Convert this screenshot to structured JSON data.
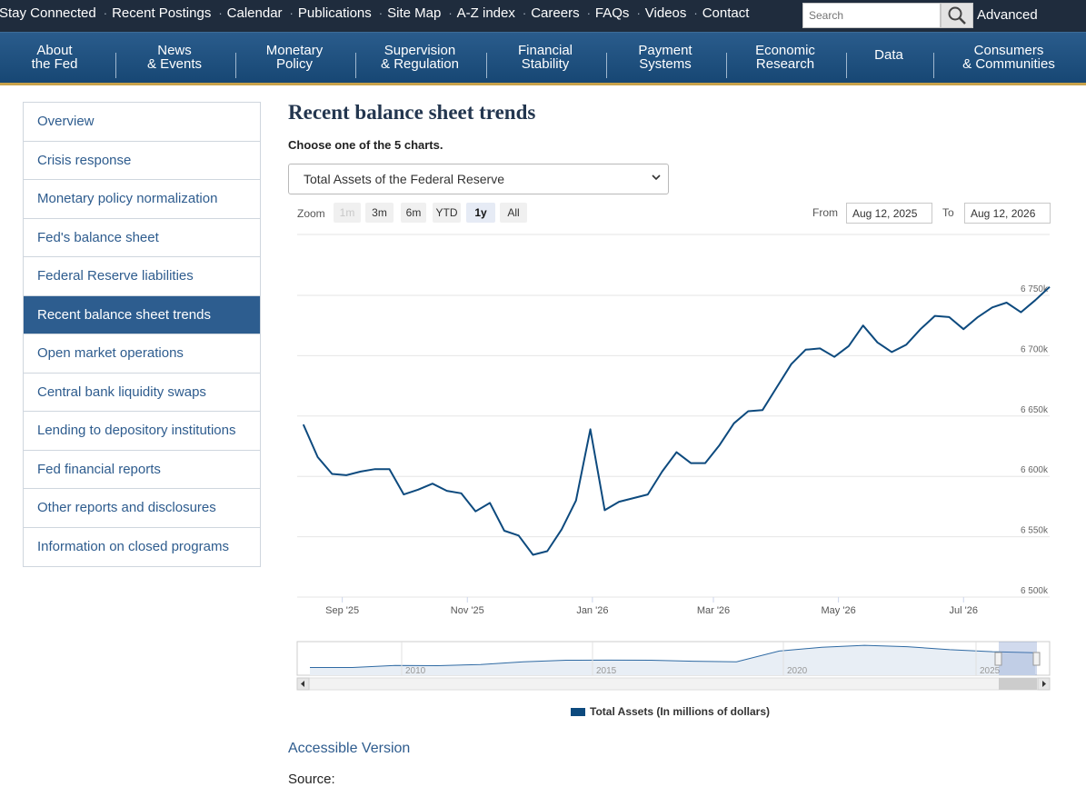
{
  "topbar": {
    "links": [
      "Stay Connected",
      "Recent Postings",
      "Calendar",
      "Publications",
      "Site Map",
      "A-Z index",
      "Careers",
      "FAQs",
      "Videos",
      "Contact"
    ],
    "search_placeholder": "Search",
    "advanced_label": "Advanced"
  },
  "nav": {
    "items": [
      {
        "line1": "About",
        "line2": "the Fed"
      },
      {
        "line1": "News",
        "line2": "& Events"
      },
      {
        "line1": "Monetary",
        "line2": "Policy"
      },
      {
        "line1": "Supervision",
        "line2": "& Regulation"
      },
      {
        "line1": "Financial",
        "line2": "Stability"
      },
      {
        "line1": "Payment",
        "line2": "Systems"
      },
      {
        "line1": "Economic",
        "line2": "Research"
      },
      {
        "line1": "Data",
        "line2": ""
      },
      {
        "line1": "Consumers",
        "line2": "& Communities"
      }
    ]
  },
  "sidebar": {
    "items": [
      "Overview",
      "Crisis response",
      "Monetary policy normalization",
      "Fed's balance sheet",
      "Federal Reserve liabilities",
      "Recent balance sheet trends",
      "Open market operations",
      "Central bank liquidity swaps",
      "Lending to depository institutions",
      "Fed financial reports",
      "Other reports and disclosures",
      "Information on closed programs"
    ],
    "active_index": 5
  },
  "main": {
    "title": "Recent balance sheet trends",
    "choose_label": "Choose one of the 5 charts.",
    "select_value": "Total Assets of the Federal Reserve",
    "zoom_label": "Zoom",
    "zoom_buttons": [
      "1m",
      "3m",
      "6m",
      "YTD",
      "1y",
      "All"
    ],
    "zoom_active": "1y",
    "from_label": "From",
    "from_value": "Aug 12, 2025",
    "to_label": "To",
    "to_value": "Aug 12, 2026",
    "accessible_link": "Accessible Version",
    "source_label": "Source:"
  },
  "chart_data": {
    "type": "line",
    "title": "",
    "ylabel": "",
    "ylim": [
      6500,
      6750
    ],
    "y_ticks": [
      "6 500k",
      "6 550k",
      "6 600k",
      "6 650k",
      "6 700k",
      "6 750k"
    ],
    "x_ticks": [
      "Sep '25",
      "Nov '25",
      "Jan '26",
      "Mar '26",
      "May '26",
      "Jul '26"
    ],
    "series": [
      {
        "name": "Total Assets (In millions of dollars)",
        "color": "#0d4a7e",
        "x": [
          "2025-08-13",
          "2025-08-20",
          "2025-08-27",
          "2025-09-03",
          "2025-09-10",
          "2025-09-17",
          "2025-09-24",
          "2025-10-01",
          "2025-10-08",
          "2025-10-15",
          "2025-10-22",
          "2025-10-29",
          "2025-11-05",
          "2025-11-12",
          "2025-11-19",
          "2025-11-26",
          "2025-12-03",
          "2025-12-10",
          "2025-12-17",
          "2025-12-24",
          "2025-12-31",
          "2026-01-07",
          "2026-01-14",
          "2026-01-21",
          "2026-01-28",
          "2026-02-04",
          "2026-02-11",
          "2026-02-18",
          "2026-02-25",
          "2026-03-04",
          "2026-03-11",
          "2026-03-18",
          "2026-03-25",
          "2026-04-01",
          "2026-04-08",
          "2026-04-15",
          "2026-04-22",
          "2026-04-29",
          "2026-05-06",
          "2026-05-13",
          "2026-05-20",
          "2026-05-27",
          "2026-06-03",
          "2026-06-10",
          "2026-06-17",
          "2026-06-24",
          "2026-07-01",
          "2026-07-08",
          "2026-07-15",
          "2026-07-22",
          "2026-07-29",
          "2026-08-05",
          "2026-08-12"
        ],
        "values": [
          6643,
          6616,
          6602,
          6601,
          6604,
          6606,
          6606,
          6585,
          6589,
          6594,
          6588,
          6586,
          6571,
          6578,
          6555,
          6551,
          6535,
          6538,
          6556,
          6580,
          6639,
          6572,
          6579,
          6582,
          6585,
          6604,
          6620,
          6611,
          6611,
          6626,
          6644,
          6654,
          6655,
          6674,
          6693,
          6705,
          6706,
          6699,
          6708,
          6725,
          6711,
          6703,
          6709,
          6722,
          6733,
          6732,
          6722,
          6732,
          6740,
          6744,
          6736,
          6746,
          6757
        ]
      }
    ],
    "navigator": {
      "x_ticks": [
        "2010",
        "2015",
        "2020",
        "2025"
      ],
      "values": [
        2300,
        2300,
        2900,
        2850,
        3200,
        4000,
        4450,
        4480,
        4450,
        4150,
        4000,
        7200,
        8300,
        8900,
        8500,
        7600,
        7000,
        6700
      ]
    },
    "legend_position": "bottom-center"
  }
}
